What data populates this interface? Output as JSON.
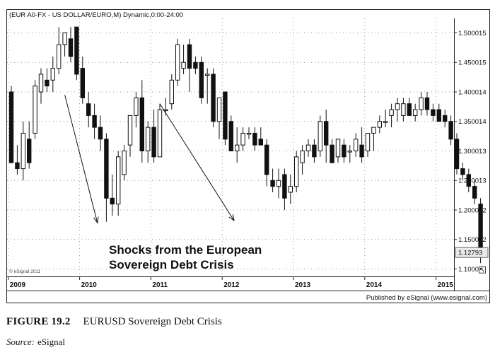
{
  "chart_data": {
    "type": "candlestick",
    "title": "(EUR A0-FX - US DOLLAR/EURO,M) Dynamic,0:00-24:00",
    "watermark": "© eSignal 2011",
    "published_by": "Published by eSignal (www.esignal.com)",
    "last_price_label": "1.12793",
    "last_price": 1.12793,
    "ylim": [
      1.08,
      1.52
    ],
    "y_ticks": [
      {
        "value": 1.100011,
        "label": "1.100011"
      },
      {
        "value": 1.150012,
        "label": "1.150012"
      },
      {
        "value": 1.200012,
        "label": "1.200012"
      },
      {
        "value": 1.250013,
        "label": "1.250013"
      },
      {
        "value": 1.300013,
        "label": "1.300013"
      },
      {
        "value": 1.350014,
        "label": "1.350014"
      },
      {
        "value": 1.400014,
        "label": "1.400014"
      },
      {
        "value": 1.450015,
        "label": "1.450015"
      },
      {
        "value": 1.500015,
        "label": "1.500015"
      }
    ],
    "x_ticks": [
      {
        "index": 0,
        "label": "2009"
      },
      {
        "index": 12,
        "label": "2010"
      },
      {
        "index": 24,
        "label": "2011"
      },
      {
        "index": 36,
        "label": "2012"
      },
      {
        "index": 48,
        "label": "2013"
      },
      {
        "index": 60,
        "label": "2014"
      },
      {
        "index": 72,
        "label": "2015"
      }
    ],
    "candles": [
      {
        "o": 1.4,
        "h": 1.41,
        "l": 1.28,
        "c": 1.28
      },
      {
        "o": 1.28,
        "h": 1.31,
        "l": 1.26,
        "c": 1.27
      },
      {
        "o": 1.27,
        "h": 1.35,
        "l": 1.25,
        "c": 1.33
      },
      {
        "o": 1.32,
        "h": 1.35,
        "l": 1.27,
        "c": 1.28
      },
      {
        "o": 1.33,
        "h": 1.42,
        "l": 1.32,
        "c": 1.41
      },
      {
        "o": 1.4,
        "h": 1.44,
        "l": 1.38,
        "c": 1.43
      },
      {
        "o": 1.42,
        "h": 1.44,
        "l": 1.4,
        "c": 1.41
      },
      {
        "o": 1.42,
        "h": 1.46,
        "l": 1.4,
        "c": 1.44
      },
      {
        "o": 1.44,
        "h": 1.51,
        "l": 1.43,
        "c": 1.48
      },
      {
        "o": 1.48,
        "h": 1.5,
        "l": 1.46,
        "c": 1.5
      },
      {
        "o": 1.49,
        "h": 1.51,
        "l": 1.45,
        "c": 1.46
      },
      {
        "o": 1.51,
        "h": 1.51,
        "l": 1.42,
        "c": 1.43
      },
      {
        "o": 1.44,
        "h": 1.46,
        "l": 1.38,
        "c": 1.39
      },
      {
        "o": 1.38,
        "h": 1.4,
        "l": 1.34,
        "c": 1.36
      },
      {
        "o": 1.36,
        "h": 1.38,
        "l": 1.32,
        "c": 1.34
      },
      {
        "o": 1.34,
        "h": 1.36,
        "l": 1.3,
        "c": 1.32
      },
      {
        "o": 1.32,
        "h": 1.33,
        "l": 1.18,
        "c": 1.22
      },
      {
        "o": 1.22,
        "h": 1.26,
        "l": 1.19,
        "c": 1.21
      },
      {
        "o": 1.21,
        "h": 1.3,
        "l": 1.19,
        "c": 1.29
      },
      {
        "o": 1.26,
        "h": 1.31,
        "l": 1.25,
        "c": 1.3
      },
      {
        "o": 1.31,
        "h": 1.36,
        "l": 1.29,
        "c": 1.36
      },
      {
        "o": 1.36,
        "h": 1.4,
        "l": 1.34,
        "c": 1.39
      },
      {
        "o": 1.39,
        "h": 1.42,
        "l": 1.28,
        "c": 1.3
      },
      {
        "o": 1.3,
        "h": 1.35,
        "l": 1.28,
        "c": 1.34
      },
      {
        "o": 1.34,
        "h": 1.37,
        "l": 1.28,
        "c": 1.29
      },
      {
        "o": 1.29,
        "h": 1.38,
        "l": 1.29,
        "c": 1.37
      },
      {
        "o": 1.37,
        "h": 1.39,
        "l": 1.36,
        "c": 1.37
      },
      {
        "o": 1.38,
        "h": 1.43,
        "l": 1.37,
        "c": 1.42
      },
      {
        "o": 1.42,
        "h": 1.49,
        "l": 1.41,
        "c": 1.48
      },
      {
        "o": 1.44,
        "h": 1.48,
        "l": 1.43,
        "c": 1.45
      },
      {
        "o": 1.48,
        "h": 1.49,
        "l": 1.4,
        "c": 1.44
      },
      {
        "o": 1.45,
        "h": 1.46,
        "l": 1.43,
        "c": 1.44
      },
      {
        "o": 1.45,
        "h": 1.46,
        "l": 1.38,
        "c": 1.39
      },
      {
        "o": 1.43,
        "h": 1.44,
        "l": 1.38,
        "c": 1.43
      },
      {
        "o": 1.43,
        "h": 1.44,
        "l": 1.34,
        "c": 1.35
      },
      {
        "o": 1.35,
        "h": 1.39,
        "l": 1.32,
        "c": 1.39
      },
      {
        "o": 1.4,
        "h": 1.4,
        "l": 1.31,
        "c": 1.32
      },
      {
        "o": 1.35,
        "h": 1.36,
        "l": 1.3,
        "c": 1.3
      },
      {
        "o": 1.3,
        "h": 1.34,
        "l": 1.28,
        "c": 1.31
      },
      {
        "o": 1.31,
        "h": 1.34,
        "l": 1.3,
        "c": 1.33
      },
      {
        "o": 1.33,
        "h": 1.34,
        "l": 1.32,
        "c": 1.33
      },
      {
        "o": 1.33,
        "h": 1.34,
        "l": 1.3,
        "c": 1.31
      },
      {
        "o": 1.32,
        "h": 1.34,
        "l": 1.31,
        "c": 1.31
      },
      {
        "o": 1.31,
        "h": 1.32,
        "l": 1.24,
        "c": 1.26
      },
      {
        "o": 1.25,
        "h": 1.27,
        "l": 1.23,
        "c": 1.24
      },
      {
        "o": 1.24,
        "h": 1.27,
        "l": 1.22,
        "c": 1.25
      },
      {
        "o": 1.26,
        "h": 1.27,
        "l": 1.2,
        "c": 1.22
      },
      {
        "o": 1.23,
        "h": 1.26,
        "l": 1.21,
        "c": 1.24
      },
      {
        "o": 1.24,
        "h": 1.3,
        "l": 1.23,
        "c": 1.29
      },
      {
        "o": 1.28,
        "h": 1.31,
        "l": 1.26,
        "c": 1.3
      },
      {
        "o": 1.3,
        "h": 1.32,
        "l": 1.29,
        "c": 1.31
      },
      {
        "o": 1.31,
        "h": 1.32,
        "l": 1.28,
        "c": 1.29
      },
      {
        "o": 1.3,
        "h": 1.36,
        "l": 1.29,
        "c": 1.35
      },
      {
        "o": 1.35,
        "h": 1.37,
        "l": 1.28,
        "c": 1.31
      },
      {
        "o": 1.31,
        "h": 1.32,
        "l": 1.28,
        "c": 1.28
      },
      {
        "o": 1.29,
        "h": 1.32,
        "l": 1.28,
        "c": 1.32
      },
      {
        "o": 1.31,
        "h": 1.32,
        "l": 1.28,
        "c": 1.29
      },
      {
        "o": 1.3,
        "h": 1.31,
        "l": 1.28,
        "c": 1.3
      },
      {
        "o": 1.3,
        "h": 1.33,
        "l": 1.29,
        "c": 1.32
      },
      {
        "o": 1.31,
        "h": 1.34,
        "l": 1.28,
        "c": 1.29
      },
      {
        "o": 1.3,
        "h": 1.33,
        "l": 1.29,
        "c": 1.33
      },
      {
        "o": 1.33,
        "h": 1.34,
        "l": 1.3,
        "c": 1.34
      },
      {
        "o": 1.34,
        "h": 1.36,
        "l": 1.33,
        "c": 1.35
      },
      {
        "o": 1.35,
        "h": 1.37,
        "l": 1.34,
        "c": 1.35
      },
      {
        "o": 1.36,
        "h": 1.38,
        "l": 1.34,
        "c": 1.37
      },
      {
        "o": 1.37,
        "h": 1.39,
        "l": 1.35,
        "c": 1.38
      },
      {
        "o": 1.36,
        "h": 1.39,
        "l": 1.35,
        "c": 1.38
      },
      {
        "o": 1.38,
        "h": 1.39,
        "l": 1.36,
        "c": 1.36
      },
      {
        "o": 1.36,
        "h": 1.38,
        "l": 1.35,
        "c": 1.37
      },
      {
        "o": 1.37,
        "h": 1.4,
        "l": 1.36,
        "c": 1.39
      },
      {
        "o": 1.39,
        "h": 1.4,
        "l": 1.36,
        "c": 1.37
      },
      {
        "o": 1.37,
        "h": 1.38,
        "l": 1.35,
        "c": 1.36
      },
      {
        "o": 1.37,
        "h": 1.38,
        "l": 1.35,
        "c": 1.35
      },
      {
        "o": 1.36,
        "h": 1.37,
        "l": 1.34,
        "c": 1.35
      },
      {
        "o": 1.35,
        "h": 1.36,
        "l": 1.31,
        "c": 1.32
      },
      {
        "o": 1.32,
        "h": 1.33,
        "l": 1.26,
        "c": 1.27
      },
      {
        "o": 1.27,
        "h": 1.28,
        "l": 1.25,
        "c": 1.26
      },
      {
        "o": 1.26,
        "h": 1.27,
        "l": 1.23,
        "c": 1.24
      },
      {
        "o": 1.24,
        "h": 1.25,
        "l": 1.21,
        "c": 1.22
      },
      {
        "o": 1.21,
        "h": 1.22,
        "l": 1.11,
        "c": 1.13
      }
    ],
    "arrows": [
      {
        "from": [
          9,
          1.395
        ],
        "to": [
          14.5,
          1.178
        ]
      },
      {
        "from": [
          25,
          1.38
        ],
        "to": [
          37.5,
          1.182
        ]
      }
    ],
    "annotation": [
      "Shocks from the European",
      "Sovereign Debt Crisis"
    ]
  },
  "caption": {
    "figure_number": "FIGURE 19.2",
    "title": "EURUSD Sovereign Debt Crisis"
  },
  "source": {
    "label": "Source:",
    "value": "eSignal"
  }
}
